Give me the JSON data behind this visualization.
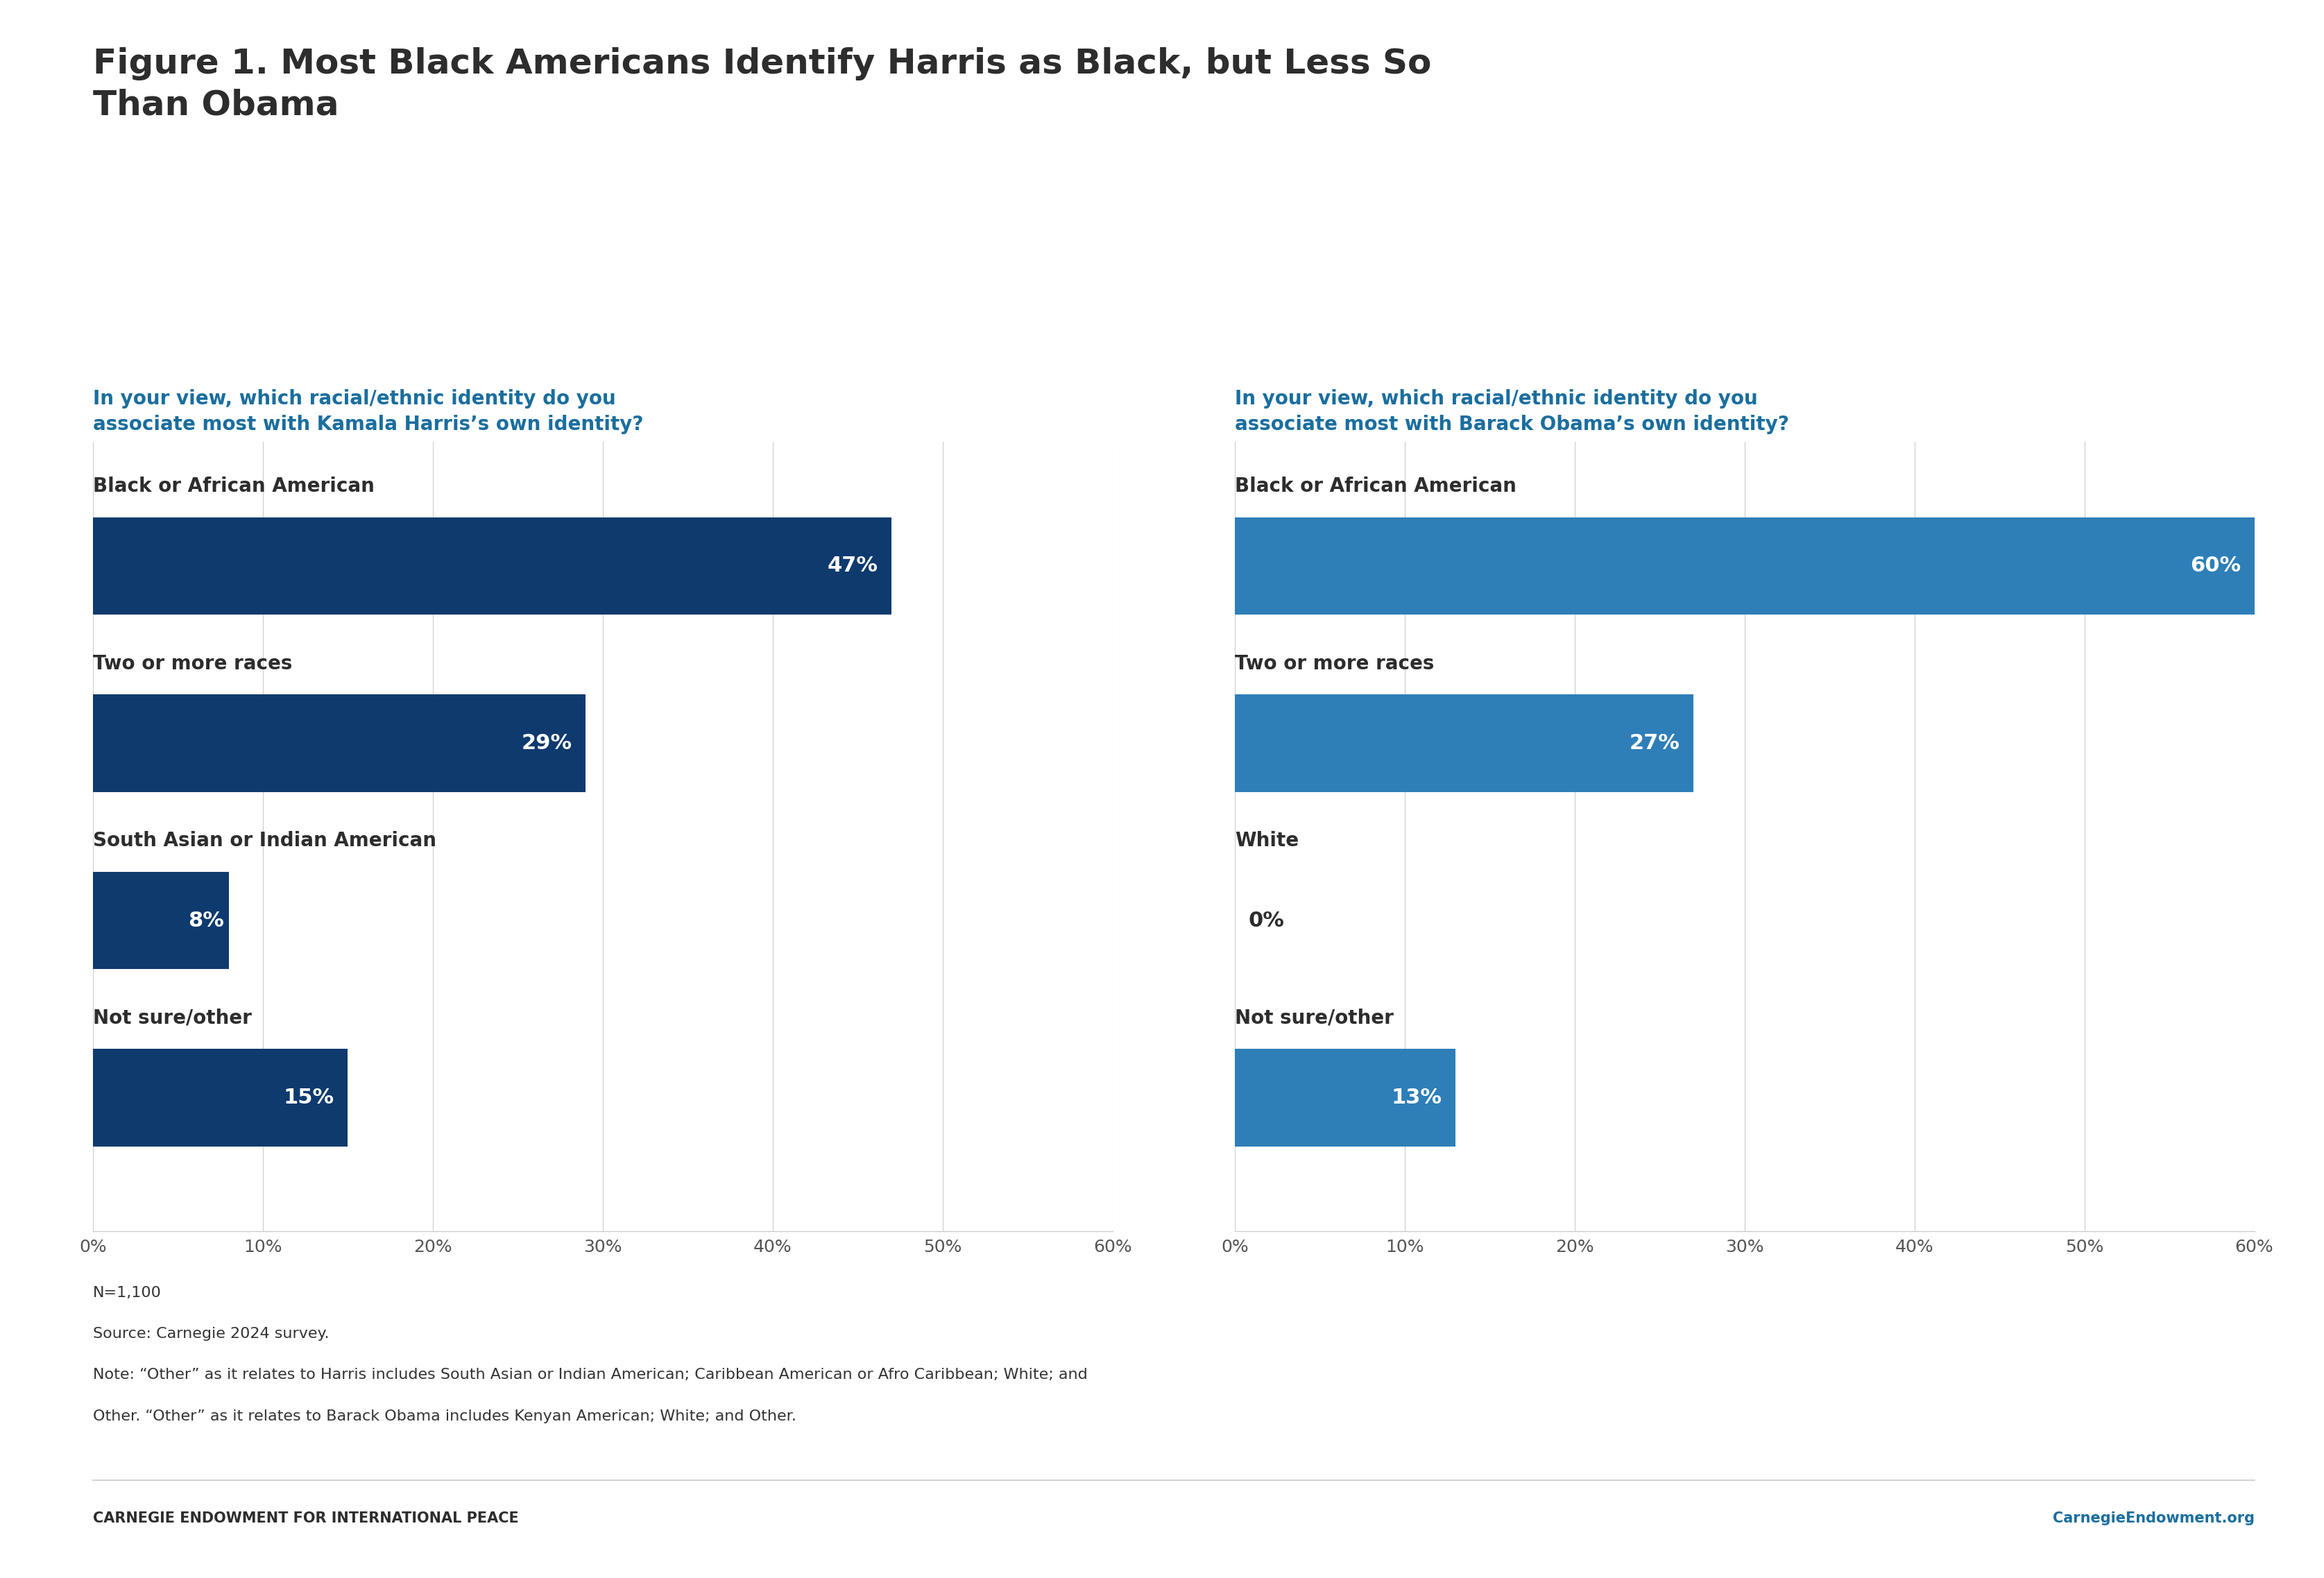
{
  "title_line1": "Figure 1. Most Black Americans Identify Harris as Black, but Less So",
  "title_line2": "Than Obama",
  "title_color": "#2d2d2d",
  "title_fontsize": 36,
  "harris_question": "In your view, which racial/ethnic identity do you\nassociate most with Kamala Harris’s own identity?",
  "obama_question": "In your view, which racial/ethnic identity do you\nassociate most with Barack Obama’s own identity?",
  "question_color": "#1a6e9e",
  "question_fontsize": 20,
  "harris_categories": [
    "Black or African American",
    "Two or more races",
    "South Asian or Indian American",
    "Not sure/other"
  ],
  "harris_values": [
    47,
    29,
    8,
    15
  ],
  "harris_bar_color": "#0e3a6e",
  "obama_categories": [
    "Black or African American",
    "Two or more races",
    "White",
    "Not sure/other"
  ],
  "obama_values": [
    60,
    27,
    0,
    13
  ],
  "obama_bar_color": "#2e7fb8",
  "xlim": [
    0,
    60
  ],
  "xtick_labels": [
    "0%",
    "10%",
    "20%",
    "30%",
    "40%",
    "50%",
    "60%"
  ],
  "xtick_values": [
    0,
    10,
    20,
    30,
    40,
    50,
    60
  ],
  "category_fontsize": 20,
  "bar_label_fontsize": 22,
  "tick_fontsize": 18,
  "footnote_lines": [
    "N=1,100",
    "Source: Carnegie 2024 survey.",
    "Note: “Other” as it relates to Harris includes South Asian or Indian American; Caribbean American or Afro Caribbean; White; and",
    "Other. “Other” as it relates to Barack Obama includes Kenyan American; White; and Other."
  ],
  "footnote_fontsize": 16,
  "footnote_color": "#333333",
  "footer_left": "CARNEGIE ENDOWMENT FOR INTERNATIONAL PEACE",
  "footer_right": "CarnegieEndowment.org",
  "footer_color_left": "#2d2d2d",
  "footer_color_right": "#1a6e9e",
  "footer_fontsize": 15,
  "background_color": "#ffffff",
  "bar_height": 0.55,
  "category_label_color": "#2d2d2d",
  "bar_text_color_inside": "#ffffff",
  "bar_text_color_outside": "#2d2d2d"
}
